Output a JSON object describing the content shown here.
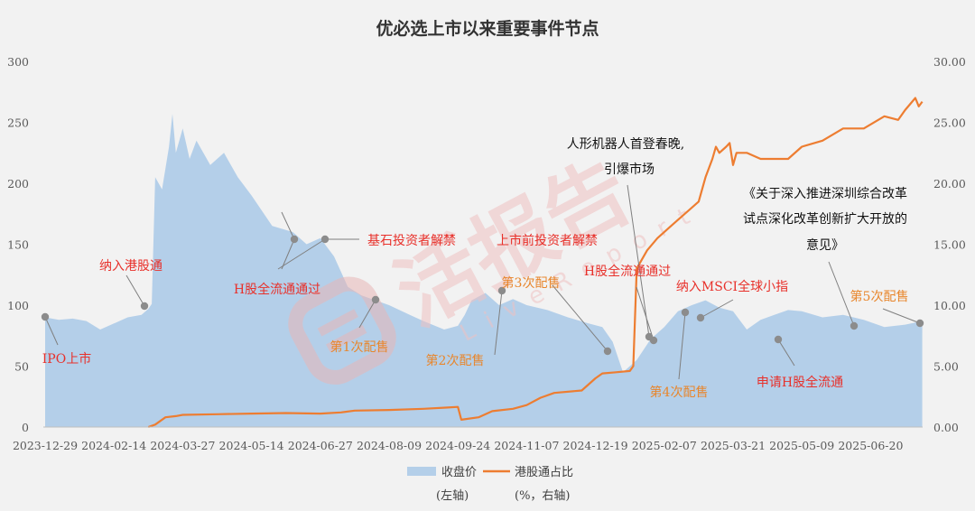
{
  "chart_data": {
    "type": "area",
    "title": "优必选上市以来重要事件节点",
    "x": [
      "2023-12-29",
      "2024-02-14",
      "2024-03-27",
      "2024-05-14",
      "2024-06-27",
      "2024-08-09",
      "2024-09-24",
      "2024-11-07",
      "2024-12-19",
      "2025-02-07",
      "2025-03-21",
      "2025-05-09",
      "2025-06-20"
    ],
    "x_ticks": [
      "2023-12-29",
      "2024-02-14",
      "2024-03-27",
      "2024-05-14",
      "2024-06-27",
      "2024-08-09",
      "2024-09-24",
      "2024-11-07",
      "2024-12-19",
      "2025-02-07",
      "2025-03-21",
      "2025-05-09",
      "2025-06-20"
    ],
    "y_left_ticks": [
      "0",
      "50",
      "100",
      "150",
      "200",
      "250",
      "300"
    ],
    "y_right_ticks": [
      "0.00",
      "5.00",
      "10.00",
      "15.00",
      "20.00",
      "25.00",
      "30.00"
    ],
    "ylim_left": [
      0,
      300
    ],
    "ylim_right": [
      0,
      30
    ],
    "grid": false,
    "legend_position": "bottom",
    "series": [
      {
        "name": "收盘价",
        "axis_note": "(左轴)",
        "type": "area",
        "color": "#b4cfe9",
        "points": [
          [
            0,
            90
          ],
          [
            0.2,
            88
          ],
          [
            0.4,
            89
          ],
          [
            0.6,
            87
          ],
          [
            0.8,
            80
          ],
          [
            1.0,
            85
          ],
          [
            1.2,
            90
          ],
          [
            1.4,
            92
          ],
          [
            1.5,
            97
          ],
          [
            1.55,
            101
          ],
          [
            1.6,
            205
          ],
          [
            1.7,
            195
          ],
          [
            1.8,
            230
          ],
          [
            1.85,
            257
          ],
          [
            1.9,
            225
          ],
          [
            2.0,
            245
          ],
          [
            2.1,
            220
          ],
          [
            2.2,
            235
          ],
          [
            2.4,
            215
          ],
          [
            2.6,
            225
          ],
          [
            2.8,
            205
          ],
          [
            3.0,
            190
          ],
          [
            3.3,
            165
          ],
          [
            3.6,
            160
          ],
          [
            3.8,
            150
          ],
          [
            4.0,
            155
          ],
          [
            4.2,
            140
          ],
          [
            4.4,
            115
          ],
          [
            4.6,
            108
          ],
          [
            4.8,
            104
          ],
          [
            5.0,
            100
          ],
          [
            5.3,
            92
          ],
          [
            5.5,
            87
          ],
          [
            5.8,
            80
          ],
          [
            6.0,
            83
          ],
          [
            6.1,
            92
          ],
          [
            6.2,
            104
          ],
          [
            6.4,
            110
          ],
          [
            6.6,
            100
          ],
          [
            6.8,
            105
          ],
          [
            7.0,
            100
          ],
          [
            7.3,
            96
          ],
          [
            7.6,
            90
          ],
          [
            7.9,
            85
          ],
          [
            8.1,
            82
          ],
          [
            8.25,
            70
          ],
          [
            8.4,
            45
          ],
          [
            8.6,
            55
          ],
          [
            8.8,
            72
          ],
          [
            9.0,
            82
          ],
          [
            9.2,
            95
          ],
          [
            9.4,
            100
          ],
          [
            9.6,
            104
          ],
          [
            9.8,
            98
          ],
          [
            10.0,
            95
          ],
          [
            10.2,
            80
          ],
          [
            10.4,
            88
          ],
          [
            10.6,
            92
          ],
          [
            10.8,
            96
          ],
          [
            11.0,
            95
          ],
          [
            11.3,
            90
          ],
          [
            11.6,
            92
          ],
          [
            11.9,
            88
          ],
          [
            12.2,
            82
          ],
          [
            12.5,
            84
          ],
          [
            12.75,
            87
          ]
        ]
      },
      {
        "name": "港股通占比",
        "axis_note": "(%，右轴)",
        "type": "line",
        "color": "#ed7d31",
        "points": [
          [
            1.5,
            0
          ],
          [
            1.6,
            0.2
          ],
          [
            1.75,
            0.8
          ],
          [
            1.9,
            0.9
          ],
          [
            2.0,
            1.0
          ],
          [
            2.5,
            1.05
          ],
          [
            3.0,
            1.1
          ],
          [
            3.5,
            1.15
          ],
          [
            4.0,
            1.1
          ],
          [
            4.3,
            1.2
          ],
          [
            4.5,
            1.35
          ],
          [
            5.0,
            1.4
          ],
          [
            5.5,
            1.5
          ],
          [
            5.85,
            1.6
          ],
          [
            6.0,
            1.65
          ],
          [
            6.05,
            0.6
          ],
          [
            6.3,
            0.8
          ],
          [
            6.5,
            1.3
          ],
          [
            6.8,
            1.5
          ],
          [
            7.0,
            1.8
          ],
          [
            7.2,
            2.4
          ],
          [
            7.4,
            2.8
          ],
          [
            7.8,
            3.0
          ],
          [
            8.0,
            4.0
          ],
          [
            8.1,
            4.4
          ],
          [
            8.3,
            4.5
          ],
          [
            8.5,
            4.6
          ],
          [
            8.55,
            5.0
          ],
          [
            8.6,
            13.0
          ],
          [
            8.65,
            13.5
          ],
          [
            8.75,
            14.5
          ],
          [
            8.9,
            15.5
          ],
          [
            9.1,
            16.5
          ],
          [
            9.3,
            17.5
          ],
          [
            9.5,
            18.5
          ],
          [
            9.6,
            20.5
          ],
          [
            9.7,
            22.0
          ],
          [
            9.75,
            23.0
          ],
          [
            9.8,
            22.5
          ],
          [
            9.9,
            23.0
          ],
          [
            9.95,
            23.3
          ],
          [
            10.0,
            21.5
          ],
          [
            10.05,
            22.5
          ],
          [
            10.2,
            22.5
          ],
          [
            10.4,
            22.0
          ],
          [
            10.6,
            22.0
          ],
          [
            10.8,
            22.0
          ],
          [
            11.0,
            23.0
          ],
          [
            11.3,
            23.5
          ],
          [
            11.6,
            24.5
          ],
          [
            11.9,
            24.5
          ],
          [
            12.2,
            25.5
          ],
          [
            12.4,
            25.2
          ],
          [
            12.5,
            26.0
          ],
          [
            12.65,
            27.0
          ],
          [
            12.7,
            26.3
          ],
          [
            12.75,
            26.7
          ]
        ]
      }
    ],
    "annotations": [
      {
        "text": "IPO上市",
        "color": "#e8302a"
      },
      {
        "text": "纳入港股通",
        "color": "#e8302a"
      },
      {
        "text": "H股全流通通过",
        "color": "#e8302a"
      },
      {
        "text": "基石投资者解禁",
        "color": "#e8302a"
      },
      {
        "text": "第1次配售",
        "color": "#e8862c"
      },
      {
        "text": "第2次配售",
        "color": "#e8862c"
      },
      {
        "text": "第3次配售",
        "color": "#e8862c"
      },
      {
        "text": "上市前投资者解禁",
        "color": "#e8302a"
      },
      {
        "text": "人形机器人首登春晚,",
        "color": "#111111"
      },
      {
        "text": "引爆市场",
        "color": "#111111"
      },
      {
        "text": "H股全流通通过",
        "color": "#e8302a"
      },
      {
        "text": "第4次配售",
        "color": "#e8862c"
      },
      {
        "text": "纳入MSCI全球小指",
        "color": "#e8302a"
      },
      {
        "text": "申请H股全流通",
        "color": "#e8302a"
      },
      {
        "text": "《关于深入推进深圳综合改革",
        "color": "#111111"
      },
      {
        "text": "试点深化改革创新扩大开放的",
        "color": "#111111"
      },
      {
        "text": "意见》",
        "color": "#111111"
      },
      {
        "text": "第5次配售",
        "color": "#e8862c"
      }
    ]
  },
  "watermark": {
    "text": "活报告",
    "subtext": "LiveReport",
    "color": "#f0c9c9"
  }
}
